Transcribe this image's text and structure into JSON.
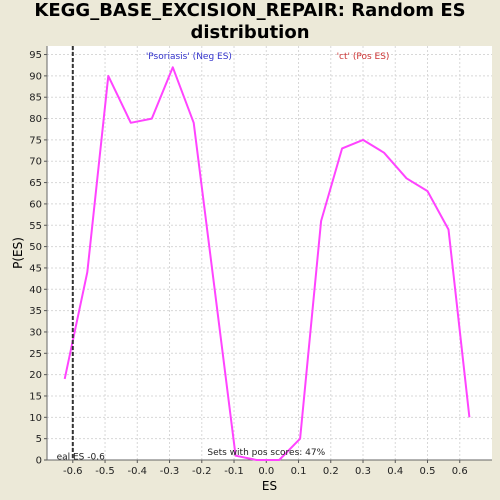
{
  "chart_data": {
    "type": "line",
    "title_line1": "KEGG_BASE_EXCISION_REPAIR: Random ES",
    "title_line2": "distribution",
    "xlabel": "ES",
    "ylabel": "P(ES)",
    "xlim": [
      -0.68,
      0.7
    ],
    "ylim": [
      0,
      97
    ],
    "xticks": [
      -0.6,
      -0.5,
      -0.4,
      -0.3,
      -0.2,
      -0.1,
      0.0,
      0.1,
      0.2,
      0.3,
      0.4,
      0.5,
      0.6
    ],
    "xtick_labels": [
      "-0.6",
      "-0.5",
      "-0.4",
      "-0.3",
      "-0.2",
      "-0.1",
      "0.0",
      "0.1",
      "0.2",
      "0.3",
      "0.4",
      "0.5",
      "0.6"
    ],
    "yticks": [
      0,
      5,
      10,
      15,
      20,
      25,
      30,
      35,
      40,
      45,
      50,
      55,
      60,
      65,
      70,
      75,
      80,
      85,
      90,
      95
    ],
    "grid": true,
    "series": [
      {
        "color": "#ff44ff",
        "x": [
          -0.625,
          -0.555,
          -0.49,
          -0.42,
          -0.355,
          -0.29,
          -0.225,
          -0.095,
          -0.03,
          0.04,
          0.105,
          0.17,
          0.235,
          0.3,
          0.365,
          0.435,
          0.5,
          0.565,
          0.63
        ],
        "y": [
          19,
          44,
          90,
          79,
          80,
          92,
          79,
          1,
          0,
          0,
          5,
          56,
          73,
          75,
          72,
          66,
          63,
          54,
          10
        ]
      }
    ],
    "real_es": -0.6,
    "real_es_label": "eal ES -0.6",
    "neg_label": "'Psoriasis' (Neg ES)",
    "pos_label": "'ct' (Pos ES)",
    "pos_fraction_label": "Sets with pos scores: 47%",
    "colors": {
      "neg_label": "#3333cc",
      "pos_label": "#cc3333",
      "line": "#ff44ff",
      "plot_bg": "#ffffff"
    }
  }
}
